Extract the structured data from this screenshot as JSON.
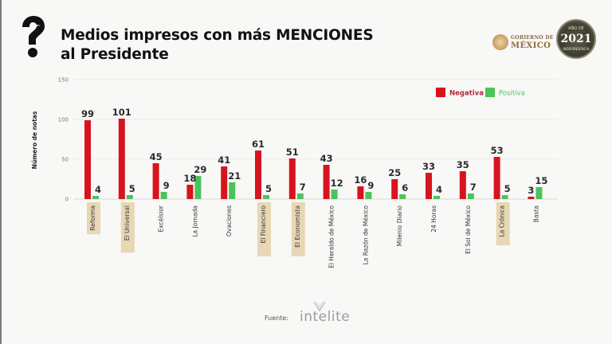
{
  "header": {
    "title_line1": "Medios impresos con más MENCIONES",
    "title_line2": "al Presidente",
    "logo_icon": "question-mark-bird-icon"
  },
  "logos": {
    "gobierno_line1": "GOBIERNO DE",
    "gobierno_line2": "MÉXICO",
    "anniversary_year": "2021",
    "anniversary_top": "AÑO DE",
    "anniversary_bottom": "INDEPENDENCIA"
  },
  "footer": {
    "source_label": "Fuente:",
    "source_brand": "intelite"
  },
  "colors": {
    "negativa": "#d7141e",
    "positiva": "#4cc35a",
    "highlight": "#e8d7b4"
  },
  "chart_data": {
    "type": "bar",
    "title": "Medios impresos con más MENCIONES al Presidente",
    "xlabel": "",
    "ylabel": "Número de notas",
    "ylim": [
      0,
      150
    ],
    "yticks": [
      "0",
      "50",
      "100",
      "150"
    ],
    "ytick_values": [
      0,
      50,
      100,
      150
    ],
    "grid": true,
    "legend_position": "top-right",
    "categories": [
      "Reforma",
      "El Universal",
      "Excélsior",
      "La Jornada",
      "Ovaciones",
      "El Financiero",
      "El Economista",
      "El Heraldo de México",
      "La Razón de México",
      "Milenio Diario",
      "24 Horas",
      "El Sol de México",
      "La Crónica",
      "Basta"
    ],
    "highlighted": [
      true,
      true,
      false,
      false,
      false,
      true,
      true,
      false,
      false,
      false,
      false,
      false,
      true,
      false
    ],
    "series": [
      {
        "name": "Negativa",
        "values": [
          99,
          101,
          45,
          18,
          41,
          61,
          51,
          43,
          16,
          25,
          33,
          35,
          53,
          3
        ]
      },
      {
        "name": "Positiva",
        "values": [
          4,
          5,
          9,
          29,
          21,
          5,
          7,
          12,
          9,
          6,
          4,
          7,
          5,
          15
        ]
      }
    ]
  }
}
